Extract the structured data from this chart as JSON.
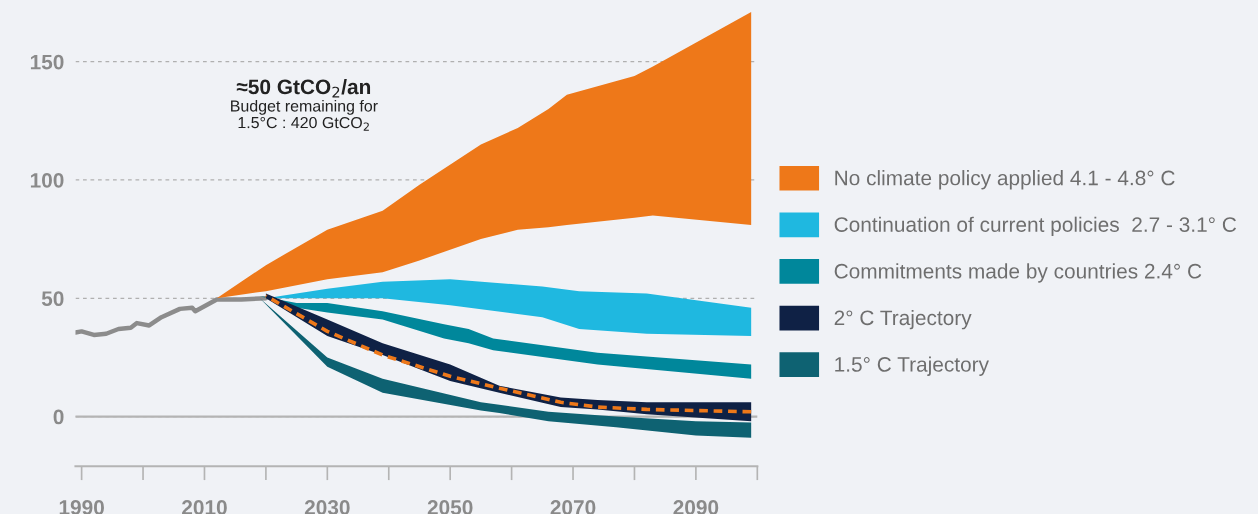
{
  "chart_data": {
    "type": "line",
    "xlim": [
      1989,
      2100
    ],
    "ylim": [
      -21,
      175
    ],
    "xticks": [
      1990,
      {
        "value": 2000,
        "label": null
      },
      2010,
      {
        "value": 2020,
        "label": null
      },
      2030,
      {
        "value": 2040,
        "label": null
      },
      2050,
      {
        "value": 2060,
        "label": null
      },
      2070,
      {
        "value": 2080,
        "label": null
      },
      2090,
      {
        "value": 2100,
        "label": null
      }
    ],
    "yticks": [
      0,
      50,
      100,
      150
    ],
    "grid": "y",
    "legend": "right",
    "ref_lines": [
      {
        "axis": "y",
        "value": 0,
        "color": "#b4b4b4"
      }
    ],
    "annotations": [
      "≈50 GtCO$_{2}$/an",
      "Budget remaining for\n1.5°C : 420 GtCO$_{2}$"
    ],
    "series": [
      {
        "color": "#8c8c8c",
        "x": [
          1989,
          1990,
          1992,
          1994,
          1996,
          1998,
          1999,
          2001,
          2003,
          2006,
          2008,
          2008.5,
          2012,
          2016,
          2020
        ],
        "values": [
          35.5,
          36,
          34.5,
          35,
          37,
          37.5,
          39.5,
          38.5,
          42,
          45.5,
          46,
          44.5,
          49.5,
          49.5,
          50
        ]
      },
      {
        "name": "No climate policy applied 4.1 - 4.8° C",
        "color": "#ee7819",
        "x": [
          2012,
          2020,
          2030,
          2039,
          2045,
          2055,
          2061,
          2066,
          2069,
          2080,
          2083,
          2099
        ],
        "values": [
          null,
          null,
          null,
          null,
          null,
          null,
          null,
          null,
          null,
          null,
          null,
          null
        ],
        "upper": [
          50,
          64,
          79,
          87,
          98,
          115,
          122,
          130,
          136,
          144,
          148,
          171
        ],
        "lower": [
          50,
          53,
          58,
          61,
          66,
          75,
          79,
          80,
          81,
          84,
          85,
          81
        ]
      },
      {
        "name": "Continuation of current policies  2.7 - 3.1° C",
        "color": "#1fb8e0",
        "x": [
          2020,
          2030,
          2039,
          2050,
          2065,
          2071,
          2082,
          2099
        ],
        "values": [
          null,
          null,
          null,
          null,
          null,
          null,
          null,
          null
        ],
        "upper": [
          50,
          54,
          57,
          58,
          55,
          53,
          52,
          46
        ],
        "lower": [
          50,
          50,
          50,
          47,
          42,
          37,
          35,
          34
        ]
      },
      {
        "name": "Commitments made by countries 2.4° C",
        "color": "#00879b",
        "x": [
          2019,
          2025,
          2030,
          2039,
          2049,
          2053,
          2057,
          2074,
          2099
        ],
        "values": [
          null,
          null,
          null,
          null,
          null,
          null,
          null,
          null,
          null
        ],
        "upper": [
          51,
          48,
          48,
          44.5,
          39,
          37,
          33,
          27,
          22
        ],
        "lower": [
          51,
          46,
          44,
          41,
          33,
          31,
          28,
          22,
          16
        ]
      },
      {
        "name": "2° C Trajectory",
        "color": "#0f2145",
        "x": [
          2020,
          2030,
          2039,
          2050,
          2058,
          2068,
          2074,
          2082,
          2099
        ],
        "values": [
          null,
          null,
          null,
          null,
          null,
          null,
          null,
          null,
          null
        ],
        "upper": [
          52,
          41,
          31,
          22,
          13,
          8,
          7,
          6,
          6
        ],
        "lower": [
          50,
          34,
          26,
          15,
          10,
          4,
          3,
          1,
          -2
        ]
      },
      {
        "name": "1.5° C Trajectory",
        "color": "#0e6272",
        "x": [
          2019,
          2030,
          2039,
          2055,
          2058,
          2066,
          2077,
          2090,
          2099
        ],
        "values": [
          null,
          null,
          null,
          null,
          null,
          null,
          null,
          null,
          null
        ],
        "upper": [
          50,
          25,
          16,
          6,
          5,
          2,
          0,
          -2,
          -2.5
        ],
        "lower": [
          50,
          21,
          10,
          2.5,
          1.5,
          -2,
          -4.5,
          -8,
          -9
        ]
      },
      {
        "color": "#ee7819",
        "line_style": "dashed",
        "x": [
          2020,
          2030,
          2039,
          2050,
          2058,
          2068,
          2074,
          2082,
          2099
        ],
        "values": [
          51,
          36,
          26,
          17,
          12,
          6,
          4,
          3,
          2
        ]
      }
    ]
  }
}
